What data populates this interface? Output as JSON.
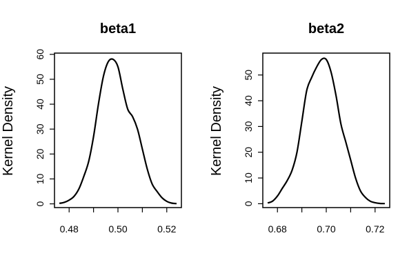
{
  "chart_data": [
    {
      "type": "line",
      "title": "beta1",
      "ylabel": "Kernel Density",
      "xlabel": "",
      "xlim": [
        0.474,
        0.526
      ],
      "ylim": [
        -1.5,
        60.5
      ],
      "xticks": [
        0.48,
        0.5,
        0.52
      ],
      "xtick_labels": [
        "0.48",
        "0.50",
        "0.52"
      ],
      "yticks": [
        0,
        10,
        20,
        30,
        40,
        50,
        60
      ],
      "ytick_labels": [
        "0",
        "10",
        "20",
        "30",
        "40",
        "50",
        "60"
      ],
      "grid": false,
      "series": [
        {
          "x": [
            0.476,
            0.478,
            0.48,
            0.482,
            0.484,
            0.486,
            0.488,
            0.49,
            0.492,
            0.494,
            0.496,
            0.498,
            0.5,
            0.502,
            0.504,
            0.506,
            0.508,
            0.51,
            0.512,
            0.514,
            0.516,
            0.518,
            0.52,
            0.522,
            0.524
          ],
          "y": [
            0.2,
            0.6,
            1.5,
            3,
            6,
            11,
            17,
            27,
            40,
            51,
            57,
            58,
            55,
            46,
            38,
            35,
            30,
            22,
            14,
            8,
            5,
            2.5,
            1,
            0.3,
            0.1
          ]
        }
      ]
    },
    {
      "type": "line",
      "title": "beta2",
      "ylabel": "Kernel Density",
      "xlabel": "",
      "xlim": [
        0.674,
        0.726
      ],
      "ylim": [
        -1.5,
        58.5
      ],
      "xticks": [
        0.68,
        0.7,
        0.72
      ],
      "xtick_labels": [
        "0.68",
        "0.70",
        "0.72"
      ],
      "yticks": [
        0,
        10,
        20,
        30,
        40,
        50
      ],
      "ytick_labels": [
        "0",
        "10",
        "20",
        "30",
        "40",
        "50"
      ],
      "grid": false,
      "series": [
        {
          "x": [
            0.676,
            0.678,
            0.68,
            0.682,
            0.684,
            0.686,
            0.688,
            0.69,
            0.692,
            0.694,
            0.696,
            0.698,
            0.7,
            0.702,
            0.704,
            0.706,
            0.708,
            0.71,
            0.712,
            0.714,
            0.716,
            0.718,
            0.72,
            0.722,
            0.724
          ],
          "y": [
            0.3,
            1,
            3,
            6,
            9,
            13,
            20,
            32,
            44,
            49,
            53,
            56,
            56,
            51,
            42,
            31,
            24,
            17,
            10,
            5,
            2.5,
            1,
            0.4,
            0.1,
            0.05
          ]
        }
      ]
    }
  ]
}
